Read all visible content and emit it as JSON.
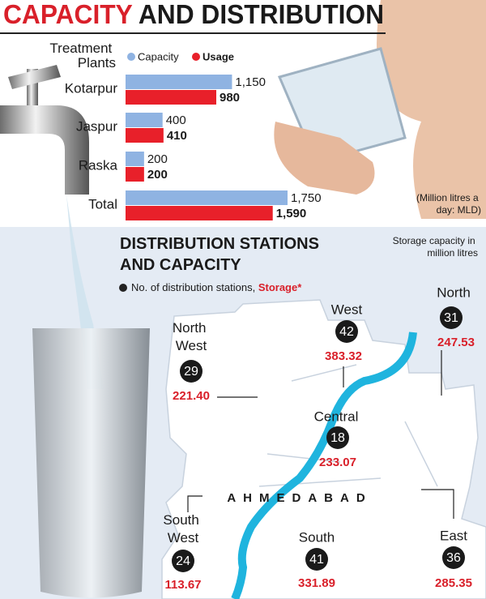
{
  "title_highlight": "CAPACITY",
  "title_rest": "AND DISTRIBUTION",
  "chart_data": {
    "type": "bar",
    "orientation": "horizontal",
    "category_label": "Treatment Plants",
    "categories": [
      "Kotarpur",
      "Jaspur",
      "Raska",
      "Total"
    ],
    "series": [
      {
        "name": "Capacity",
        "color": "#8fb3e2",
        "values": [
          1150,
          400,
          200,
          1750
        ],
        "value_labels": [
          "1,150",
          "400",
          "200",
          "1,750"
        ]
      },
      {
        "name": "Usage",
        "color": "#e8202a",
        "values": [
          980,
          410,
          200,
          1590
        ],
        "value_labels": [
          "980",
          "410",
          "200",
          "1,590"
        ]
      }
    ],
    "note": "(Million litres a day: MLD)"
  },
  "map": {
    "title": "DISTRIBUTION STATIONS AND CAPACITY",
    "legend_stations": "No. of distribution stations,",
    "legend_storage": "Storage*",
    "note": "Storage capacity in million litres",
    "city": "AHMEDABAD",
    "zones": [
      {
        "name": "North",
        "stations": 31,
        "storage": "247.53"
      },
      {
        "name": "West",
        "stations": 42,
        "storage": "383.32"
      },
      {
        "name": "North West",
        "stations": 29,
        "storage": "221.40"
      },
      {
        "name": "Central",
        "stations": 18,
        "storage": "233.07"
      },
      {
        "name": "South West",
        "stations": 24,
        "storage": "113.67"
      },
      {
        "name": "South",
        "stations": 41,
        "storage": "331.89"
      },
      {
        "name": "East",
        "stations": 36,
        "storage": "285.35"
      }
    ]
  }
}
